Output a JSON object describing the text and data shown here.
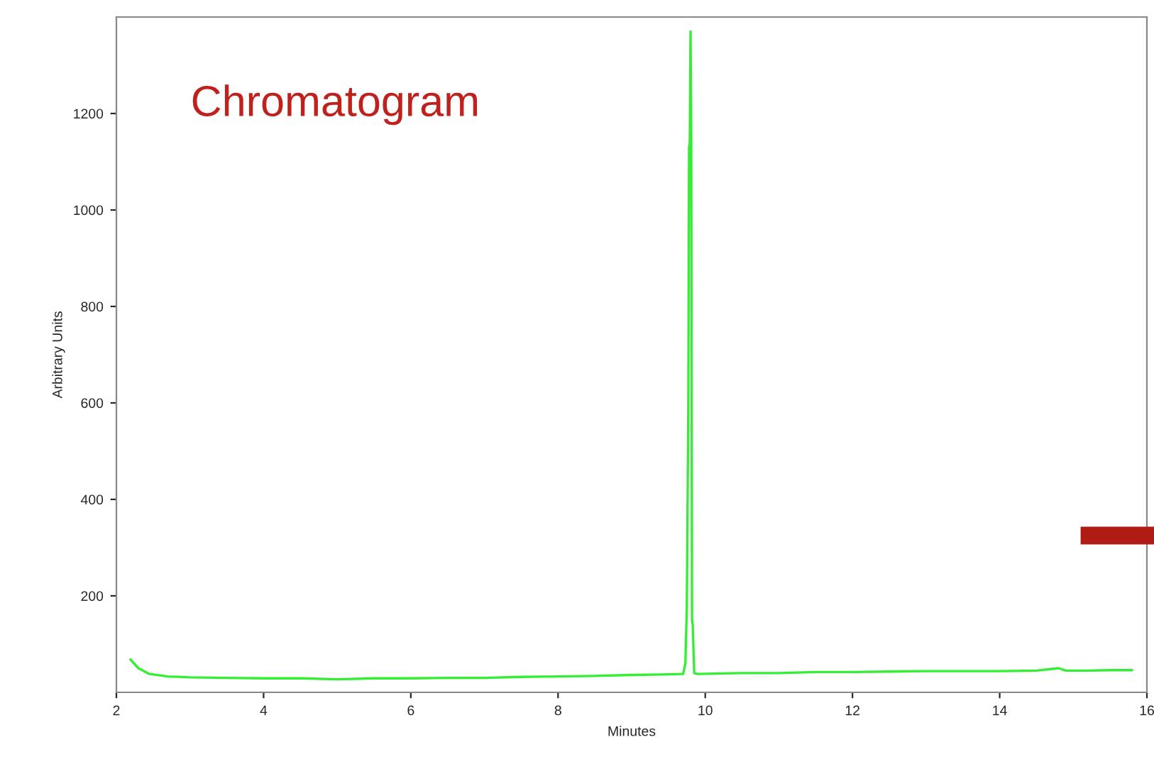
{
  "chart_data": {
    "type": "line",
    "xlabel": "Minutes",
    "ylabel": "Arbitrary Units",
    "annotations": [
      "Chromatogram"
    ],
    "x": [
      2.19,
      2.3,
      2.45,
      2.7,
      3.0,
      3.5,
      4.0,
      4.5,
      5.0,
      5.5,
      6.0,
      6.5,
      7.0,
      7.5,
      8.0,
      8.5,
      9.0,
      9.4,
      9.7,
      9.73,
      9.75,
      9.77,
      9.78,
      9.79,
      9.8,
      9.81,
      9.82,
      9.83,
      9.85,
      9.9,
      10.5,
      11.0,
      11.5,
      12.0,
      12.5,
      13.0,
      13.5,
      14.0,
      14.5,
      14.8,
      14.9,
      15.2,
      15.5,
      15.8
    ],
    "series": [
      {
        "color": "#33ee33",
        "values": [
          68,
          50,
          38,
          33,
          31,
          30,
          29,
          29,
          27,
          29,
          29,
          30,
          30,
          32,
          33,
          34,
          36,
          37,
          38,
          60,
          180,
          600,
          1130,
          1140,
          1370,
          1140,
          150,
          140,
          40,
          38,
          40,
          40,
          42,
          42,
          43,
          44,
          44,
          44,
          45,
          50,
          45,
          45,
          46,
          46
        ]
      }
    ],
    "xlim": [
      2,
      16
    ],
    "xticks": [
      2,
      4,
      6,
      8,
      10,
      12,
      14,
      16
    ],
    "ylim": [
      0,
      1400
    ],
    "yticks": [
      200,
      400,
      600,
      800,
      1000,
      1200
    ],
    "grid": false,
    "legend": false,
    "marker": "none",
    "line_style": "solid"
  }
}
